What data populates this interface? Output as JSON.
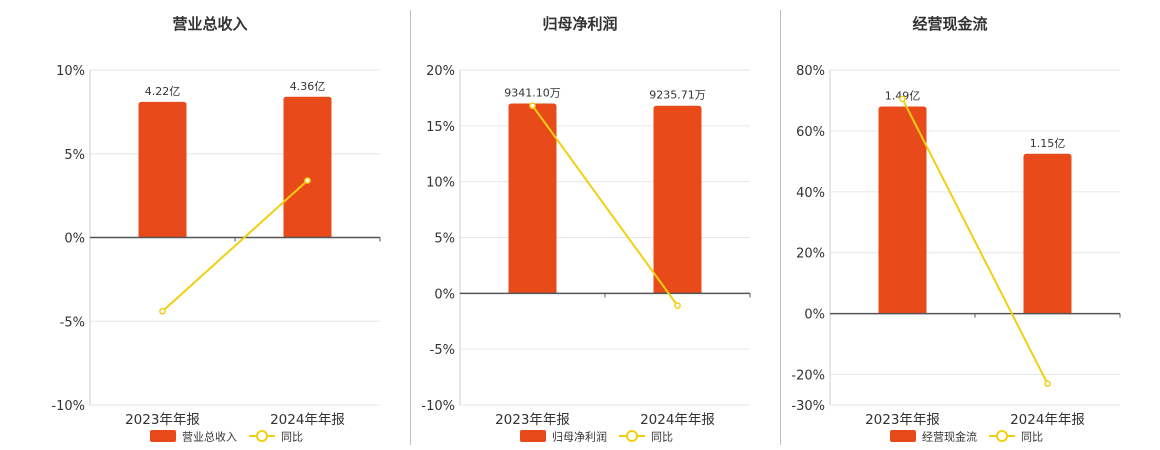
{
  "colors": {
    "bar": "#E84A1A",
    "line": "#F2CF11",
    "grid": "#e6e6e6",
    "axis": "#555555"
  },
  "chart_data": [
    {
      "type": "bar",
      "title": "营业总收入",
      "categories": [
        "2023年年报",
        "2024年年报"
      ],
      "series": [
        {
          "name": "营业总收入",
          "type": "bar",
          "values": [
            8.1,
            8.4
          ],
          "labels": [
            "4.22亿",
            "4.36亿"
          ]
        },
        {
          "name": "同比",
          "type": "line",
          "values": [
            -4.4,
            3.4
          ]
        }
      ],
      "yticks": [
        10,
        5,
        0,
        -5,
        -10
      ],
      "ytick_labels": [
        "10%",
        "5%",
        "0%",
        "-5%",
        "-10%"
      ],
      "ylim": [
        -10,
        10
      ]
    },
    {
      "type": "bar",
      "title": "归母净利润",
      "categories": [
        "2023年年报",
        "2024年年报"
      ],
      "series": [
        {
          "name": "归母净利润",
          "type": "bar",
          "values": [
            17.0,
            16.8
          ],
          "labels": [
            "9341.10万",
            "9235.71万"
          ]
        },
        {
          "name": "同比",
          "type": "line",
          "values": [
            16.8,
            -1.1
          ]
        }
      ],
      "yticks": [
        20,
        15,
        10,
        5,
        0,
        -5,
        -10
      ],
      "ytick_labels": [
        "20%",
        "15%",
        "10%",
        "5%",
        "0%",
        "-5%",
        "-10%"
      ],
      "ylim": [
        -10,
        20
      ]
    },
    {
      "type": "bar",
      "title": "经营现金流",
      "categories": [
        "2023年年报",
        "2024年年报"
      ],
      "series": [
        {
          "name": "经营现金流",
          "type": "bar",
          "values": [
            68,
            52.5
          ],
          "labels": [
            "1.49亿",
            "1.15亿"
          ]
        },
        {
          "name": "同比",
          "type": "line",
          "values": [
            70.5,
            -23
          ]
        }
      ],
      "yticks": [
        80,
        60,
        40,
        20,
        0,
        -20,
        -30
      ],
      "ytick_labels": [
        "80%",
        "60%",
        "40%",
        "20%",
        "0%",
        "-20%",
        "-30%"
      ],
      "ylim": [
        -30,
        80
      ]
    }
  ]
}
